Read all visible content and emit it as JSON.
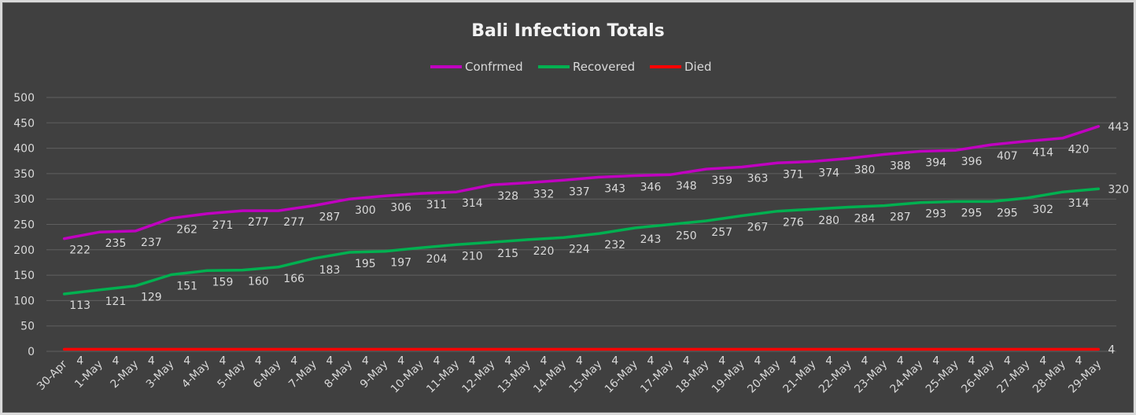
{
  "chart_data": {
    "type": "line",
    "title": "Bali Infection Totals",
    "categories": [
      "30-Apr",
      "1-May",
      "2-May",
      "3-May",
      "4-May",
      "5-May",
      "6-May",
      "7-May",
      "8-May",
      "9-May",
      "10-May",
      "11-May",
      "12-May",
      "13-May",
      "14-May",
      "15-May",
      "16-May",
      "17-May",
      "18-May",
      "19-May",
      "20-May",
      "21-May",
      "22-May",
      "23-May",
      "24-May",
      "25-May",
      "26-May",
      "27-May",
      "28-May",
      "29-May"
    ],
    "series": [
      {
        "name": "Confrmed",
        "color": "#c000c0",
        "values": [
          222,
          235,
          237,
          262,
          271,
          277,
          277,
          287,
          300,
          306,
          311,
          314,
          328,
          332,
          337,
          343,
          346,
          348,
          359,
          363,
          371,
          374,
          380,
          388,
          394,
          396,
          407,
          414,
          420,
          443
        ]
      },
      {
        "name": "Recovered",
        "color": "#00b050",
        "values": [
          113,
          121,
          129,
          151,
          159,
          160,
          166,
          183,
          195,
          197,
          204,
          210,
          215,
          220,
          224,
          232,
          243,
          250,
          257,
          267,
          276,
          280,
          284,
          287,
          293,
          295,
          295,
          302,
          314,
          320
        ]
      },
      {
        "name": "Died",
        "color": "#ff0000",
        "values": [
          4,
          4,
          4,
          4,
          4,
          4,
          4,
          4,
          4,
          4,
          4,
          4,
          4,
          4,
          4,
          4,
          4,
          4,
          4,
          4,
          4,
          4,
          4,
          4,
          4,
          4,
          4,
          4,
          4,
          4
        ]
      }
    ],
    "ylim": [
      0,
      500
    ],
    "yticks": [
      0,
      50,
      100,
      150,
      200,
      250,
      300,
      350,
      400,
      450,
      500
    ],
    "grid": true,
    "legend": "top",
    "xlabel": "",
    "ylabel": ""
  }
}
